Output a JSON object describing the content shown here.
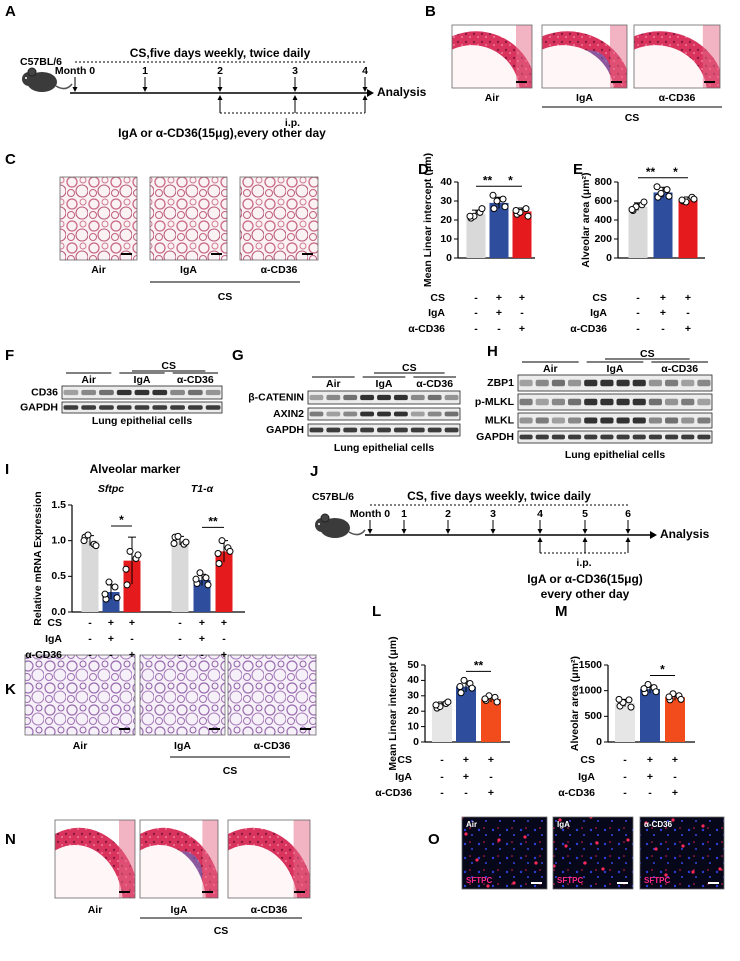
{
  "panels": {
    "A": {
      "label": "A",
      "strain": "C57BL/6",
      "exposure": "CS,five days weekly, twice daily",
      "months": [
        "Month 0",
        "1",
        "2",
        "3",
        "4"
      ],
      "end": "Analysis",
      "route": "i.p.",
      "treatment": [
        "IgA or α-CD36(15μg),every other day"
      ]
    },
    "B": {
      "label": "B",
      "images": [
        "Air",
        "IgA",
        "α-CD36"
      ],
      "group": "CS"
    },
    "C": {
      "label": "C",
      "images": [
        "Air",
        "IgA",
        "α-CD36"
      ],
      "group": "CS"
    },
    "F": {
      "label": "F",
      "groups": [
        "Air",
        "IgA",
        "α-CD36"
      ],
      "group": "CS",
      "rows": [
        "CD36",
        "GAPDH"
      ],
      "caption": "Lung epithelial cells"
    },
    "G": {
      "label": "G",
      "groups": [
        "Air",
        "IgA",
        "α-CD36"
      ],
      "group": "CS",
      "rows": [
        "β-CATENIN",
        "AXIN2",
        "GAPDH"
      ],
      "caption": "Lung epithelial cells"
    },
    "H": {
      "label": "H",
      "groups": [
        "Air",
        "IgA",
        "α-CD36"
      ],
      "group": "CS",
      "rows": [
        "ZBP1",
        "p-MLKL",
        "MLKL",
        "GAPDH"
      ],
      "caption": "Lung epithelial cells"
    },
    "J": {
      "label": "J",
      "strain": "C57BL/6",
      "exposure": "CS, five days weekly, twice daily",
      "months": [
        "Month 0",
        "1",
        "2",
        "3",
        "4",
        "5",
        "6"
      ],
      "end": "Analysis",
      "route": "i.p.",
      "treatment": [
        "IgA or α-CD36(15μg)",
        "every other day"
      ]
    },
    "K": {
      "label": "K",
      "images": [
        "Air",
        "IgA",
        "α-CD36"
      ],
      "group": "CS"
    },
    "N": {
      "label": "N",
      "images": [
        "Air",
        "IgA",
        "α-CD36"
      ],
      "group": "CS"
    },
    "O": {
      "label": "O",
      "images": [
        "Air",
        "IgA",
        "α-CD36"
      ],
      "stain": [
        "SFTPC",
        "SFTPC",
        "SFTPC"
      ]
    }
  },
  "chart_data": [
    {
      "type": "bar",
      "label": "D",
      "ylabel": "Mean Linear intercept (μm)",
      "ylim": [
        0,
        40
      ],
      "yticks": [
        0,
        10,
        20,
        30,
        40
      ],
      "colors": [
        "#d9d9d9",
        "#2e4d9c",
        "#e41a1c"
      ],
      "values": [
        23,
        29,
        24.5
      ],
      "errors": [
        2.2,
        3,
        1.8
      ],
      "points": [
        [
          21,
          24,
          22,
          26,
          22
        ],
        [
          26,
          31,
          30,
          27,
          33
        ],
        [
          23,
          26,
          24,
          22,
          25
        ]
      ],
      "significance": [
        {
          "label": "**",
          "between": [
            0,
            1
          ]
        },
        {
          "label": "*",
          "between": [
            1,
            2
          ]
        }
      ],
      "conditions": [
        {
          "label": "CS",
          "signs": [
            "-",
            "+",
            "+"
          ]
        },
        {
          "label": "IgA",
          "signs": [
            "-",
            "+",
            "-"
          ]
        },
        {
          "label": "α-CD36",
          "signs": [
            "-",
            "-",
            "+"
          ]
        }
      ]
    },
    {
      "type": "bar",
      "label": "E",
      "ylabel": "Alveolar area (μm²)",
      "ylim": [
        0,
        800
      ],
      "yticks": [
        0,
        200,
        400,
        600,
        800
      ],
      "colors": [
        "#d9d9d9",
        "#2e4d9c",
        "#e41a1c"
      ],
      "values": [
        540,
        690,
        612
      ],
      "errors": [
        40,
        55,
        30
      ],
      "points": [
        [
          500,
          560,
          540,
          590,
          510
        ],
        [
          640,
          720,
          680,
          650,
          750
        ],
        [
          600,
          640,
          590,
          620,
          610
        ]
      ],
      "significance": [
        {
          "label": "**",
          "between": [
            0,
            1
          ]
        },
        {
          "label": "*",
          "between": [
            1,
            2
          ]
        }
      ],
      "conditions": [
        {
          "label": "CS",
          "signs": [
            "-",
            "+",
            "+"
          ]
        },
        {
          "label": "IgA",
          "signs": [
            "-",
            "+",
            "-"
          ]
        },
        {
          "label": "α-CD36",
          "signs": [
            "-",
            "-",
            "+"
          ]
        }
      ]
    },
    {
      "type": "bar",
      "label": "I",
      "title": "Alveolar marker",
      "ylabel": "Relative mRNA Expression",
      "ylim": [
        0,
        1.5
      ],
      "yticks": [
        {
          "value": 0,
          "label": "0.0"
        },
        0.5,
        {
          "value": 1,
          "label": "1.0"
        },
        1.5
      ],
      "colors": [
        "#d9d9d9",
        "#2e4d9c",
        "#e41a1c"
      ],
      "groups": [
        {
          "name": "Sftpc",
          "values": [
            1.0,
            0.28,
            0.72
          ],
          "errors": [
            0.07,
            0.1,
            0.33
          ],
          "points": [
            [
              1.05,
              0.95,
              1.08,
              0.93,
              1.0
            ],
            [
              0.18,
              0.35,
              0.42,
              0.2,
              0.25
            ],
            [
              0.38,
              0.75,
              0.85,
              0.8,
              0.6
            ]
          ],
          "significance": [
            {
              "label": "*",
              "between": [
                1,
                2
              ]
            }
          ]
        },
        {
          "name": "T1-α",
          "values": [
            1.0,
            0.45,
            0.85
          ],
          "errors": [
            0.06,
            0.08,
            0.15
          ],
          "points": [
            [
              1.05,
              0.95,
              1.06,
              0.98,
              0.96
            ],
            [
              0.4,
              0.48,
              0.55,
              0.38,
              0.46
            ],
            [
              0.68,
              0.9,
              1.0,
              0.85,
              0.82
            ]
          ],
          "significance": [
            {
              "label": "**",
              "between": [
                1,
                2
              ]
            }
          ]
        }
      ],
      "conditions": [
        {
          "label": "CS",
          "signs": [
            "-",
            "+",
            "+",
            "-",
            "+",
            "+"
          ]
        },
        {
          "label": "IgA",
          "signs": [
            "-",
            "+",
            "-",
            "-",
            "+",
            "-"
          ]
        },
        {
          "label": "α-CD36",
          "signs": [
            "-",
            "-",
            "+",
            "-",
            "-",
            "+"
          ]
        }
      ]
    },
    {
      "type": "bar",
      "label": "L",
      "ylabel": "Mean Linear intercept (μm)",
      "ylim": [
        0,
        50
      ],
      "yticks": [
        0,
        10,
        20,
        30,
        40,
        50
      ],
      "colors": [
        "#e6e6e6",
        "#2e4d9c",
        "#f24b1c"
      ],
      "values": [
        24,
        36,
        28
      ],
      "errors": [
        2,
        3.5,
        2
      ],
      "points": [
        [
          22,
          25,
          23,
          26,
          24
        ],
        [
          32,
          38,
          40,
          35,
          36
        ],
        [
          27,
          29,
          30,
          26,
          28
        ]
      ],
      "significance": [
        {
          "label": "**",
          "between": [
            1,
            2
          ]
        }
      ],
      "conditions": [
        {
          "label": "CS",
          "signs": [
            "-",
            "+",
            "+"
          ]
        },
        {
          "label": "IgA",
          "signs": [
            "-",
            "+",
            "-"
          ]
        },
        {
          "label": "α-CD36",
          "signs": [
            "-",
            "-",
            "+"
          ]
        }
      ]
    },
    {
      "type": "bar",
      "label": "M",
      "ylabel": "Alveolar area (μm²)",
      "ylim": [
        0,
        1500
      ],
      "yticks": [
        0,
        500,
        1000,
        1500
      ],
      "colors": [
        "#e6e6e6",
        "#2e4d9c",
        "#f24b1c"
      ],
      "values": [
        760,
        1030,
        870
      ],
      "errors": [
        70,
        80,
        60
      ],
      "points": [
        [
          700,
          820,
          770,
          680,
          830
        ],
        [
          960,
          1060,
          1120,
          980,
          1040
        ],
        [
          820,
          900,
          940,
          830,
          880
        ]
      ],
      "significance": [
        {
          "label": "*",
          "between": [
            1,
            2
          ]
        }
      ],
      "conditions": [
        {
          "label": "CS",
          "signs": [
            "-",
            "+",
            "+"
          ]
        },
        {
          "label": "IgA",
          "signs": [
            "-",
            "+",
            "-"
          ]
        },
        {
          "label": "α-CD36",
          "signs": [
            "-",
            "-",
            "+"
          ]
        }
      ]
    }
  ]
}
